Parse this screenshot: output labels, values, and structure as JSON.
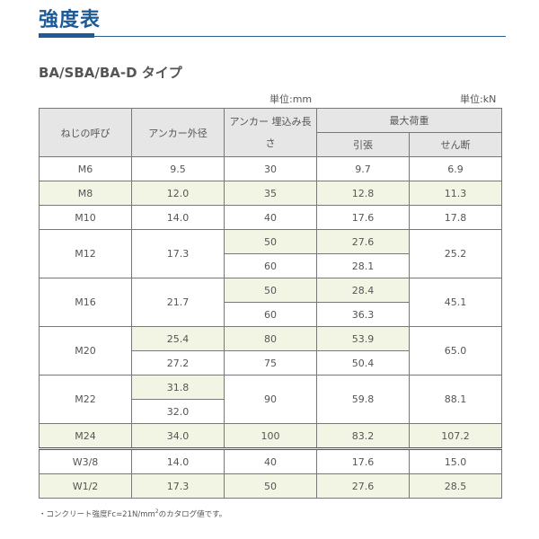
{
  "title": "強度表",
  "subtitle": "BA/SBA/BA-D タイプ",
  "unit_mm": "単位:mm",
  "unit_kn": "単位:kN",
  "headers": {
    "name": "ねじの呼び",
    "diameter": "アンカー外径",
    "embed": "アンカー 埋込み長さ",
    "max_load": "最大荷重",
    "tensile": "引張",
    "shear": "せん断"
  },
  "rows": [
    [
      {
        "t": "M6"
      },
      {
        "t": "9.5"
      },
      {
        "t": "30"
      },
      {
        "t": "9.7"
      },
      {
        "t": "6.9"
      }
    ],
    [
      {
        "t": "M8",
        "h": 1
      },
      {
        "t": "12.0",
        "h": 1
      },
      {
        "t": "35",
        "h": 1
      },
      {
        "t": "12.8",
        "h": 1
      },
      {
        "t": "11.3",
        "h": 1
      }
    ],
    [
      {
        "t": "M10"
      },
      {
        "t": "14.0"
      },
      {
        "t": "40"
      },
      {
        "t": "17.6"
      },
      {
        "t": "17.8"
      }
    ],
    [
      {
        "t": "M12",
        "r": 2
      },
      {
        "t": "17.3",
        "r": 2
      },
      {
        "t": "50",
        "h": 1
      },
      {
        "t": "27.6",
        "h": 1
      },
      {
        "t": "25.2",
        "r": 2
      }
    ],
    [
      {
        "t": "60"
      },
      {
        "t": "28.1"
      }
    ],
    [
      {
        "t": "M16",
        "r": 2
      },
      {
        "t": "21.7",
        "r": 2
      },
      {
        "t": "50",
        "h": 1
      },
      {
        "t": "28.4",
        "h": 1
      },
      {
        "t": "45.1",
        "r": 2
      }
    ],
    [
      {
        "t": "60"
      },
      {
        "t": "36.3"
      }
    ],
    [
      {
        "t": "M20",
        "r": 2
      },
      {
        "t": "25.4",
        "h": 1
      },
      {
        "t": "80",
        "h": 1
      },
      {
        "t": "53.9",
        "h": 1
      },
      {
        "t": "65.0",
        "r": 2
      }
    ],
    [
      {
        "t": "27.2"
      },
      {
        "t": "75"
      },
      {
        "t": "50.4"
      }
    ],
    [
      {
        "t": "M22",
        "r": 2
      },
      {
        "t": "31.8",
        "h": 1
      },
      {
        "t": "90",
        "r": 2
      },
      {
        "t": "59.8",
        "r": 2
      },
      {
        "t": "88.1",
        "r": 2
      }
    ],
    [
      {
        "t": "32.0"
      }
    ],
    [
      {
        "t": "M24",
        "h": 1
      },
      {
        "t": "34.0",
        "h": 1
      },
      {
        "t": "100",
        "h": 1
      },
      {
        "t": "83.2",
        "h": 1
      },
      {
        "t": "107.2",
        "h": 1
      }
    ],
    [
      {
        "t": "W3/8"
      },
      {
        "t": "14.0"
      },
      {
        "t": "40"
      },
      {
        "t": "17.6"
      },
      {
        "t": "15.0"
      }
    ],
    [
      {
        "t": "W1/2",
        "h": 1
      },
      {
        "t": "17.3",
        "h": 1
      },
      {
        "t": "50",
        "h": 1
      },
      {
        "t": "27.6",
        "h": 1
      },
      {
        "t": "28.5",
        "h": 1
      }
    ]
  ],
  "note": {
    "before": "・コンクリート強度Fc=21N/mm",
    "sup": "2",
    "after": "のカタログ値です。"
  },
  "colors": {
    "accent": "#1e5a96",
    "header_bg": "#e6e6e6",
    "highlight": "#f3f5e4"
  }
}
